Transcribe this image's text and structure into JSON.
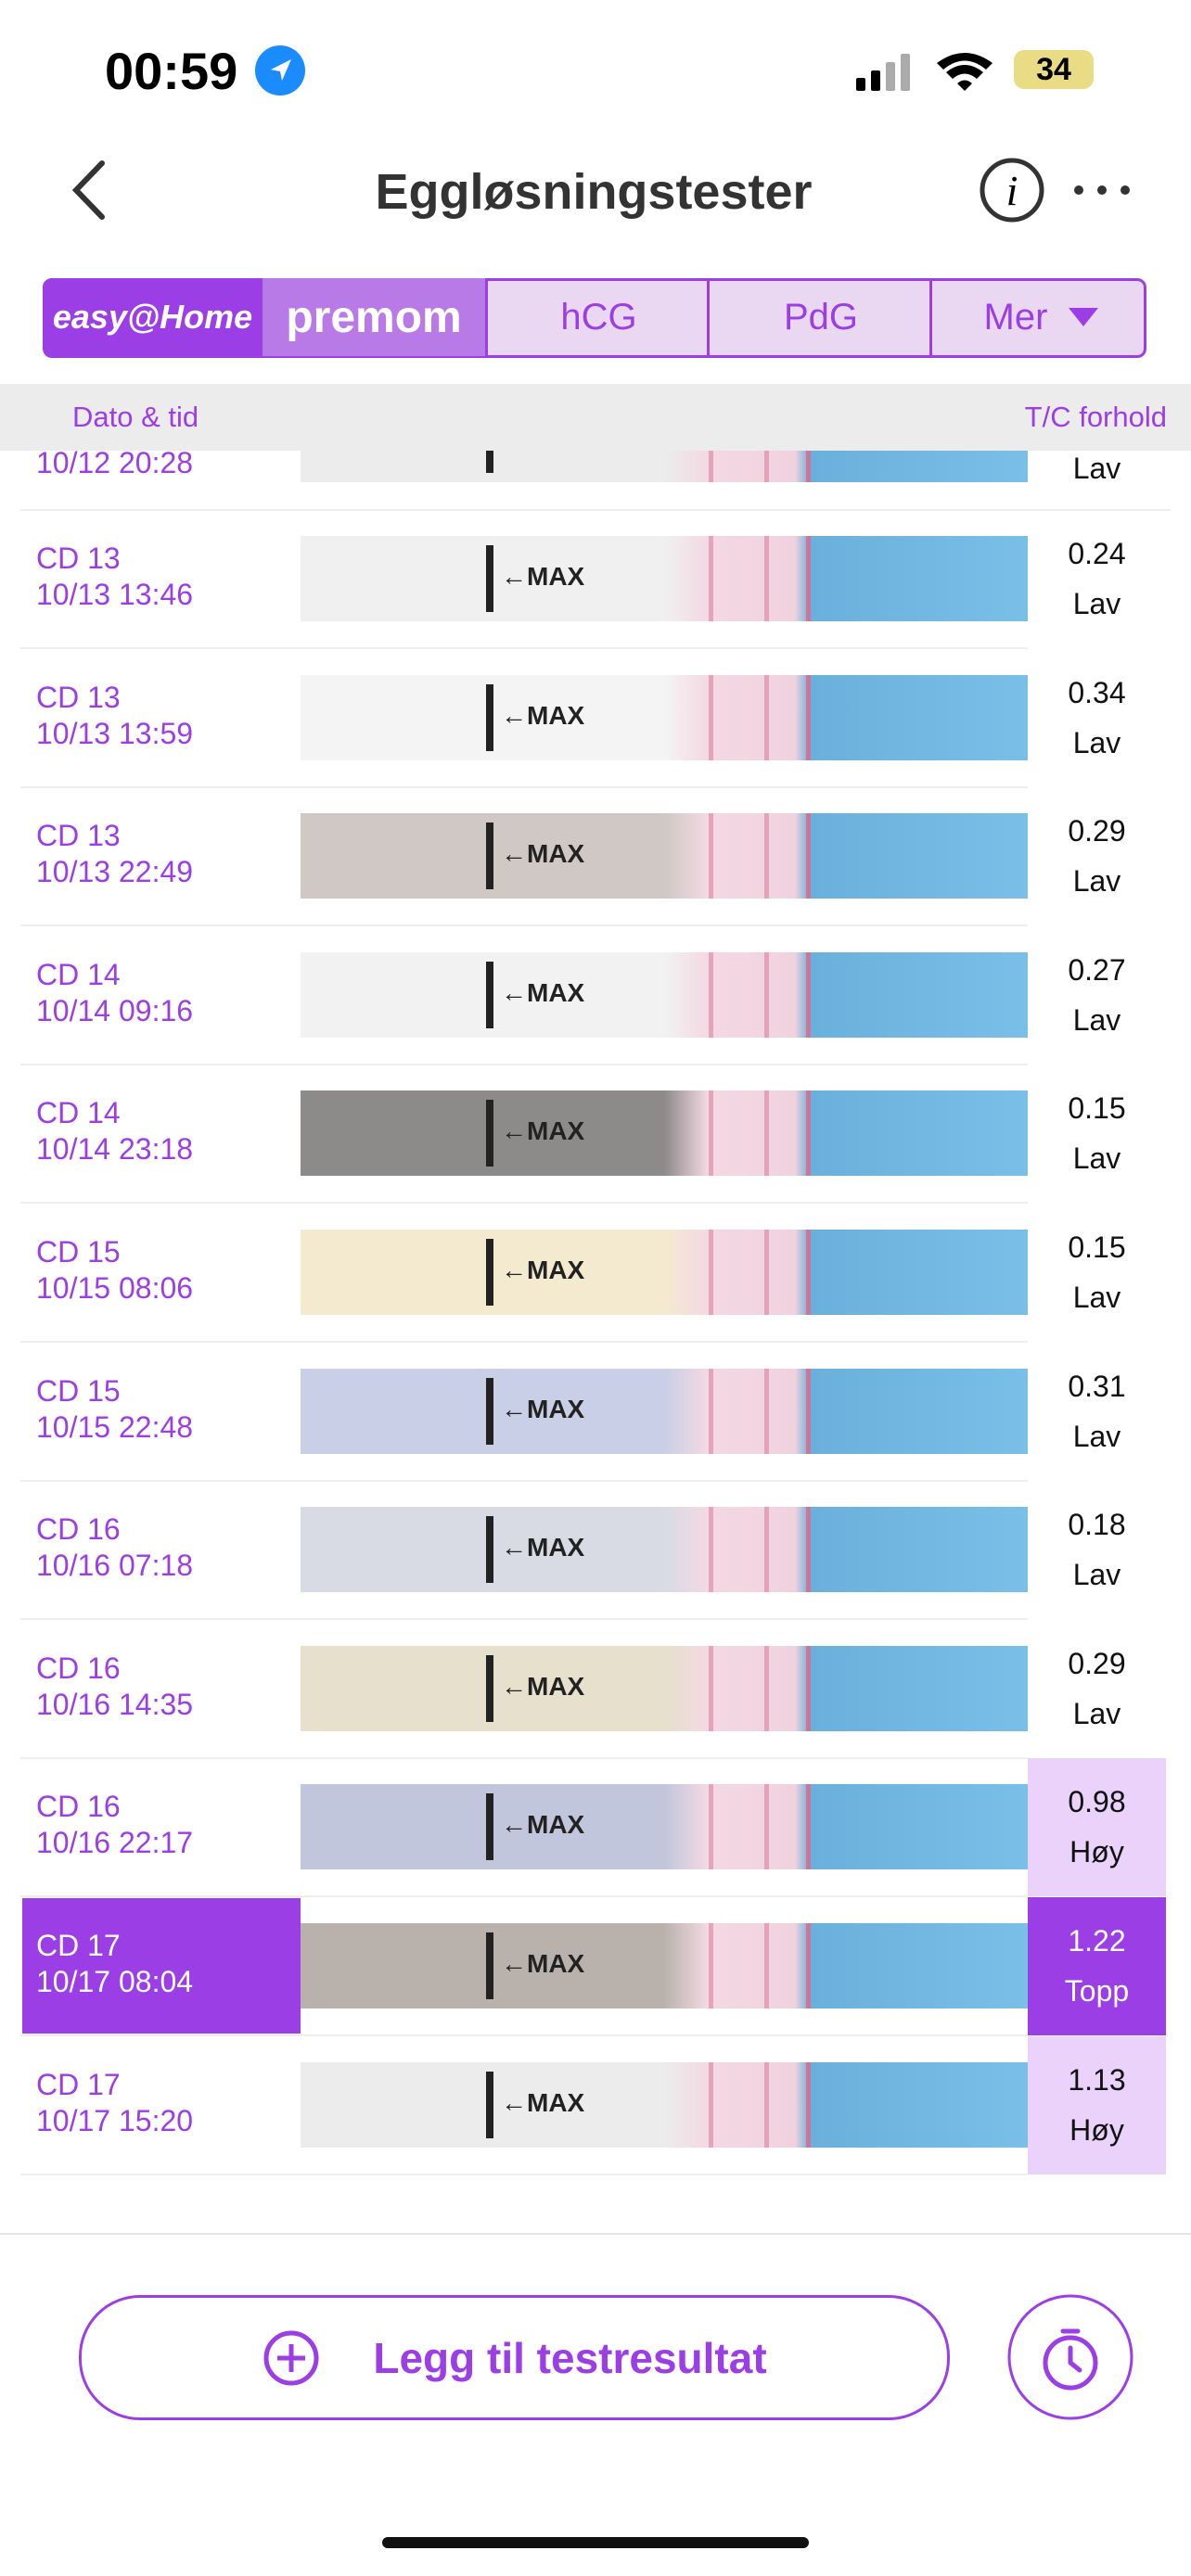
{
  "status": {
    "time": "00:59",
    "battery": "34"
  },
  "header": {
    "title": "Eggløsningstester"
  },
  "tabs": {
    "brand": "easy@Home",
    "premom": "premom",
    "items": [
      "hCG",
      "PdG",
      "Mer"
    ]
  },
  "columns": {
    "date": "Dato & tid",
    "ratio": "T/C forhold"
  },
  "partial_row": {
    "date": "10/12 20:28",
    "level": "Lav"
  },
  "rows": [
    {
      "cd": "CD 13",
      "date": "10/13 13:46",
      "ratio": "0.24",
      "level": "Lav"
    },
    {
      "cd": "CD 13",
      "date": "10/13 13:59",
      "ratio": "0.34",
      "level": "Lav"
    },
    {
      "cd": "CD 13",
      "date": "10/13 22:49",
      "ratio": "0.29",
      "level": "Lav"
    },
    {
      "cd": "CD 14",
      "date": "10/14 09:16",
      "ratio": "0.27",
      "level": "Lav"
    },
    {
      "cd": "CD 14",
      "date": "10/14 23:18",
      "ratio": "0.15",
      "level": "Lav"
    },
    {
      "cd": "CD 15",
      "date": "10/15 08:06",
      "ratio": "0.15",
      "level": "Lav"
    },
    {
      "cd": "CD 15",
      "date": "10/15 22:48",
      "ratio": "0.31",
      "level": "Lav"
    },
    {
      "cd": "CD 16",
      "date": "10/16 07:18",
      "ratio": "0.18",
      "level": "Lav"
    },
    {
      "cd": "CD 16",
      "date": "10/16 14:35",
      "ratio": "0.29",
      "level": "Lav"
    },
    {
      "cd": "CD 16",
      "date": "10/16 22:17",
      "ratio": "0.98",
      "level": "Høy",
      "result_color": "#ead2fb"
    },
    {
      "cd": "CD 17",
      "date": "10/17 08:04",
      "ratio": "1.22",
      "level": "Topp",
      "result_color": "#9b3ee6",
      "selected": true
    },
    {
      "cd": "CD 17",
      "date": "10/17 15:20",
      "ratio": "1.13",
      "level": "Høy",
      "result_color": "#ead2fb"
    }
  ],
  "button": {
    "label": "Legg til testresultat"
  }
}
